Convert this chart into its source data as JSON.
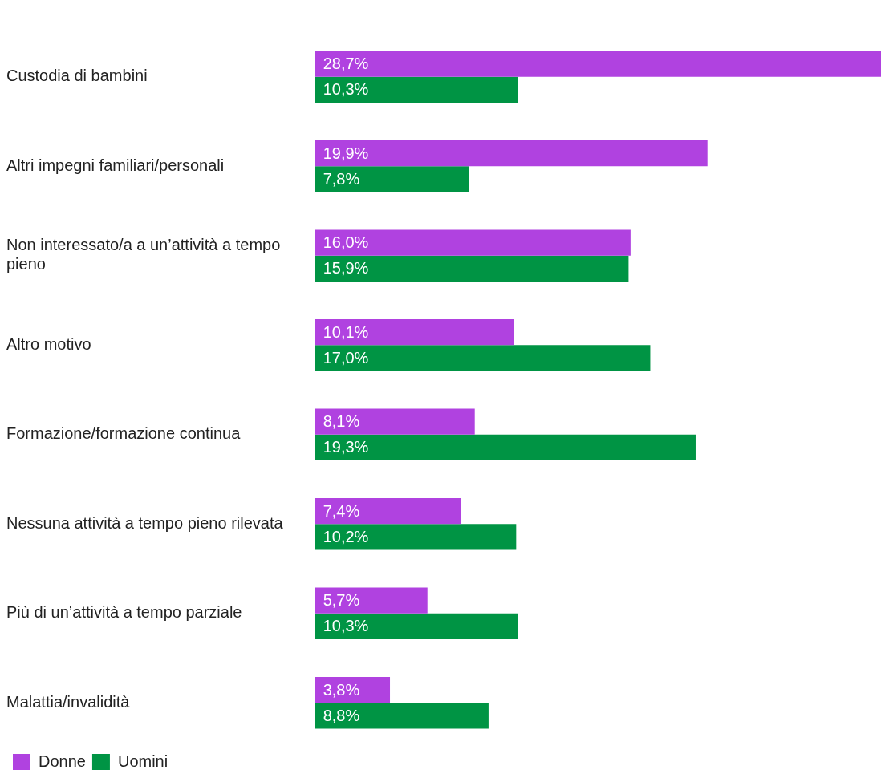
{
  "chart_data": {
    "type": "bar",
    "orientation": "horizontal",
    "legend": "bottom left",
    "categories": [
      "Custodia di bambini",
      "Altri impegni familiari/personali",
      "Non interessato/a a un’attività a tempo pieno",
      "Altro motivo",
      "Formazione/formazione continua",
      "Nessuna attività a tempo pieno rilevata",
      "Più di un’attività a tempo parziale",
      "Malattia/invalidità"
    ],
    "series": [
      {
        "name": "Donne",
        "color": "#b042e0",
        "values": [
          28.7,
          19.9,
          16.0,
          10.1,
          8.1,
          7.4,
          5.7,
          3.8
        ],
        "value_labels": [
          "28,7%",
          "19,9%",
          "16,0%",
          "10,1%",
          "8,1%",
          "7,4%",
          "5,7%",
          "3,8%"
        ]
      },
      {
        "name": "Uomini",
        "color": "#009444",
        "values": [
          10.3,
          7.8,
          15.9,
          17.0,
          19.3,
          10.2,
          10.3,
          8.8
        ],
        "value_labels": [
          "10,3%",
          "7,8%",
          "15,9%",
          "17,0%",
          "19,3%",
          "10,2%",
          "10,3%",
          "8,8%"
        ]
      }
    ]
  }
}
